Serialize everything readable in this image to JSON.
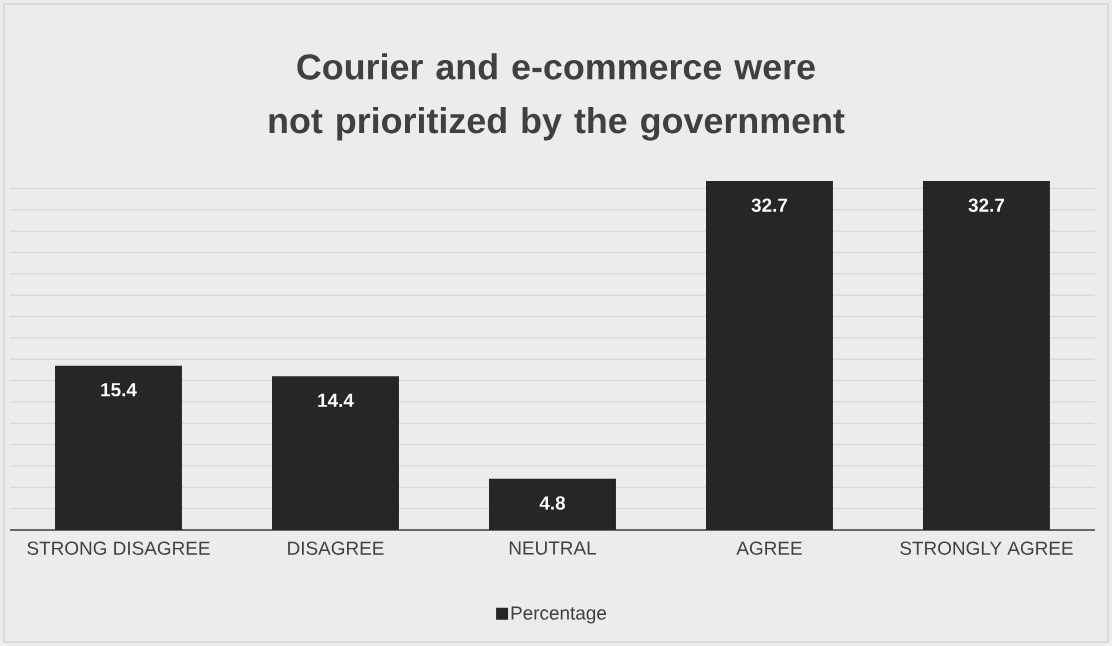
{
  "chart_data": {
    "type": "bar",
    "title": "Courier and e-commerce were not prioritized by the government",
    "categories": [
      "STRONG DISAGREE",
      "DISAGREE",
      "NEUTRAL",
      "AGREE",
      "STRONGLY AGREE"
    ],
    "series": [
      {
        "name": "Percentage",
        "color": "#262626",
        "values": [
          15.4,
          14.4,
          4.8,
          32.7,
          32.7
        ]
      }
    ],
    "data_labels": true,
    "grid": "y",
    "legend": "bottom",
    "tick_labels": "x"
  }
}
